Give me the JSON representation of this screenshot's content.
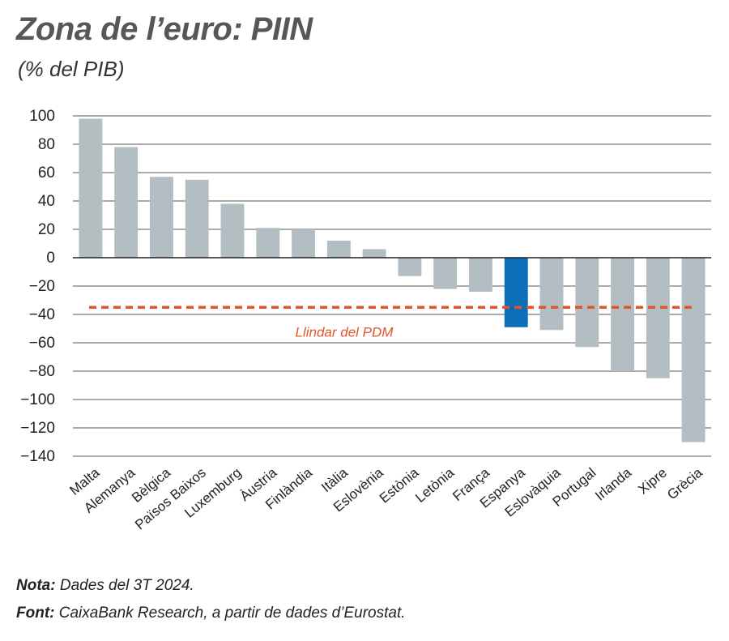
{
  "chart_data": {
    "type": "bar",
    "title": "Zona de l’euro: PIIN",
    "subtitle": "(% del PIB)",
    "categories": [
      "Malta",
      "Alemanya",
      "Bèlgica",
      "Països Baixos",
      "Luxemburg",
      "Àustria",
      "Finlàndia",
      "Itàlia",
      "Eslovènia",
      "Estònia",
      "Letònia",
      "França",
      "Espanya",
      "Eslovàquia",
      "Portugal",
      "Irlanda",
      "Xipre",
      "Grècia"
    ],
    "values": [
      98,
      78,
      57,
      55,
      38,
      21,
      20,
      12,
      6,
      -13,
      -22,
      -24,
      -49,
      -51,
      -63,
      -80,
      -85,
      -130
    ],
    "highlight_category": "Espanya",
    "ylim": [
      -140,
      100
    ],
    "yticks": [
      100,
      80,
      60,
      40,
      20,
      0,
      -20,
      -40,
      -60,
      -80,
      -100,
      -120,
      -140
    ],
    "grid": true,
    "threshold": {
      "value": -35,
      "label": "Llindar del PDM"
    },
    "colors": {
      "bar": "#b3bec3",
      "highlight": "#0b6fb8",
      "threshold": "#e4542a",
      "grid": "#555555",
      "axis": "#222222"
    }
  },
  "notes": {
    "nota_label": "Nota:",
    "nota_text": " Dades del 3T 2024.",
    "font_label": "Font:",
    "font_text": " CaixaBank Research, a partir de dades d’Eurostat."
  }
}
